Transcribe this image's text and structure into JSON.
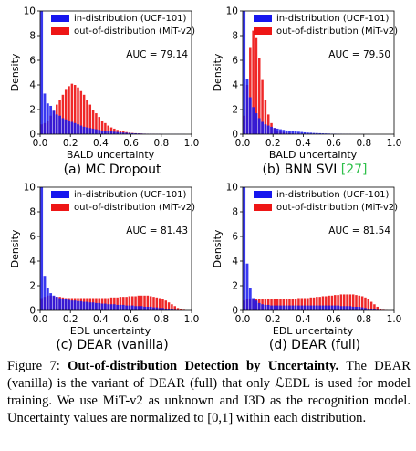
{
  "figure": {
    "caption": {
      "label": "Figure 7:",
      "title": "Out-of-distribution Detection by Uncertainty.",
      "text": "The DEAR (vanilla) is the variant of DEAR (full) that only ℒEDL is used for model training. We use MiT-v2 as unknown and I3D as the recognition model. Uncertainty values are normalized to [0,1] within each distribution."
    }
  },
  "colors": {
    "in_distribution": "#1616ee",
    "out_of_distribution": "#ee1616"
  },
  "chart_data": [
    {
      "type": "bar",
      "subcaption": {
        "prefix": "(a) MC Dropout",
        "citation": ""
      },
      "xlabel": "BALD uncertainty",
      "ylabel": "Density",
      "xlim": [
        0,
        1
      ],
      "ylim": [
        0,
        10
      ],
      "xticks": [
        "0.0",
        "0.2",
        "0.4",
        "0.6",
        "0.8",
        "1.0"
      ],
      "yticks": [
        "0",
        "2",
        "4",
        "6",
        "8",
        "10"
      ],
      "annotation": "AUC = 79.14",
      "legend": {
        "position": "top-right",
        "entries": [
          "in-distribution (UCF-101)",
          "out-of-distribution (MiT-v2)"
        ]
      },
      "series": [
        {
          "name": "in-distribution (UCF-101)",
          "bin_width": 0.02,
          "values": [
            10,
            3.3,
            2.5,
            2.3,
            1.9,
            1.6,
            1.5,
            1.3,
            1.2,
            1.1,
            1.0,
            0.9,
            0.8,
            0.7,
            0.6,
            0.55,
            0.5,
            0.45,
            0.4,
            0.35,
            0.3,
            0.28,
            0.25,
            0.22,
            0.2,
            0.18,
            0.15,
            0.13,
            0.12,
            0.1,
            0.08,
            0.07,
            0.06,
            0.05,
            0.04,
            0.03,
            0.03,
            0.02,
            0.02,
            0.02,
            0.01,
            0.01,
            0.01,
            0.01,
            0.01,
            0.01,
            0.01,
            0.01,
            0,
            0
          ]
        },
        {
          "name": "out-of-distribution (MiT-v2)",
          "bin_width": 0.02,
          "values": [
            0.8,
            0.9,
            1.1,
            1.5,
            1.9,
            2.4,
            2.8,
            3.2,
            3.6,
            3.9,
            4.1,
            4.0,
            3.8,
            3.5,
            3.2,
            2.8,
            2.4,
            2.0,
            1.7,
            1.4,
            1.1,
            0.9,
            0.7,
            0.55,
            0.45,
            0.35,
            0.28,
            0.22,
            0.17,
            0.13,
            0.1,
            0.08,
            0.06,
            0.05,
            0.04,
            0.03,
            0.02,
            0.02,
            0.01,
            0.01,
            0,
            0,
            0,
            0,
            0,
            0,
            0,
            0,
            0,
            0
          ]
        }
      ]
    },
    {
      "type": "bar",
      "subcaption": {
        "prefix": "(b) BNN SVI ",
        "citation": "[27]"
      },
      "xlabel": "BALD uncertainty",
      "ylabel": "Density",
      "xlim": [
        0,
        1
      ],
      "ylim": [
        0,
        10
      ],
      "xticks": [
        "0.0",
        "0.2",
        "0.4",
        "0.6",
        "0.8",
        "1.0"
      ],
      "yticks": [
        "0",
        "2",
        "4",
        "6",
        "8",
        "10"
      ],
      "annotation": "AUC = 79.50",
      "legend": {
        "position": "top-right",
        "entries": [
          "in-distribution (UCF-101)",
          "out-of-distribution (MiT-v2)"
        ]
      },
      "series": [
        {
          "name": "in-distribution (UCF-101)",
          "bin_width": 0.02,
          "values": [
            10,
            4.5,
            3.0,
            2.2,
            1.7,
            1.3,
            1.0,
            0.8,
            0.7,
            0.6,
            0.5,
            0.45,
            0.4,
            0.35,
            0.3,
            0.28,
            0.25,
            0.22,
            0.2,
            0.18,
            0.15,
            0.13,
            0.12,
            0.1,
            0.09,
            0.08,
            0.07,
            0.06,
            0.05,
            0.04,
            0.04,
            0.03,
            0.03,
            0.02,
            0.02,
            0.02,
            0.01,
            0.01,
            0.01,
            0.01,
            0.01,
            0.01,
            0,
            0,
            0,
            0,
            0,
            0,
            0,
            0
          ]
        },
        {
          "name": "out-of-distribution (MiT-v2)",
          "bin_width": 0.02,
          "values": [
            1.5,
            4.0,
            7.0,
            8.4,
            7.8,
            6.2,
            4.4,
            2.8,
            1.6,
            0.9,
            0.5,
            0.3,
            0.2,
            0.15,
            0.1,
            0.08,
            0.06,
            0.05,
            0.04,
            0.03,
            0.02,
            0.02,
            0.01,
            0.01,
            0.01,
            0,
            0,
            0,
            0,
            0,
            0,
            0,
            0,
            0,
            0,
            0,
            0,
            0,
            0,
            0,
            0,
            0,
            0,
            0,
            0,
            0,
            0,
            0,
            0,
            0
          ]
        }
      ]
    },
    {
      "type": "bar",
      "subcaption": {
        "prefix": "(c) DEAR (vanilla)",
        "citation": ""
      },
      "xlabel": "EDL uncertainty",
      "ylabel": "Density",
      "xlim": [
        0,
        1
      ],
      "ylim": [
        0,
        10
      ],
      "xticks": [
        "0.0",
        "0.2",
        "0.4",
        "0.6",
        "0.8",
        "1.0"
      ],
      "yticks": [
        "0",
        "2",
        "4",
        "6",
        "8",
        "10"
      ],
      "annotation": "AUC = 81.43",
      "legend": {
        "position": "top-right",
        "entries": [
          "in-distribution (UCF-101)",
          "out-of-distribution (MiT-v2)"
        ]
      },
      "series": [
        {
          "name": "in-distribution (UCF-101)",
          "bin_width": 0.02,
          "values": [
            10,
            2.8,
            1.8,
            1.4,
            1.2,
            1.1,
            1.0,
            0.95,
            0.9,
            0.85,
            0.8,
            0.8,
            0.75,
            0.75,
            0.7,
            0.7,
            0.65,
            0.65,
            0.6,
            0.6,
            0.55,
            0.55,
            0.5,
            0.5,
            0.5,
            0.45,
            0.45,
            0.45,
            0.4,
            0.4,
            0.4,
            0.35,
            0.35,
            0.35,
            0.3,
            0.3,
            0.3,
            0.25,
            0.25,
            0.2,
            0.2,
            0.15,
            0.12,
            0.1,
            0.05,
            0.02,
            0,
            0,
            0,
            0
          ]
        },
        {
          "name": "out-of-distribution (MiT-v2)",
          "bin_width": 0.02,
          "values": [
            1.0,
            1.1,
            1.2,
            1.2,
            1.15,
            1.1,
            1.1,
            1.05,
            1.0,
            1.0,
            1.0,
            1.0,
            1.0,
            1.0,
            1.0,
            1.0,
            1.0,
            1.0,
            1.0,
            1.0,
            1.0,
            1.0,
            1.0,
            1.05,
            1.05,
            1.05,
            1.1,
            1.1,
            1.1,
            1.15,
            1.15,
            1.15,
            1.2,
            1.2,
            1.2,
            1.2,
            1.15,
            1.1,
            1.05,
            1.0,
            0.9,
            0.8,
            0.65,
            0.5,
            0.35,
            0.2,
            0.1,
            0.05,
            0,
            0
          ]
        }
      ]
    },
    {
      "type": "bar",
      "subcaption": {
        "prefix": "(d) DEAR (full)",
        "citation": ""
      },
      "xlabel": "EDL uncertainty",
      "ylabel": "Density",
      "xlim": [
        0,
        1
      ],
      "ylim": [
        0,
        10
      ],
      "xticks": [
        "0.0",
        "0.2",
        "0.4",
        "0.6",
        "0.8",
        "1.0"
      ],
      "yticks": [
        "0",
        "2",
        "4",
        "6",
        "8",
        "10"
      ],
      "annotation": "AUC = 81.54",
      "legend": {
        "position": "top-right",
        "entries": [
          "in-distribution (UCF-101)",
          "out-of-distribution (MiT-v2)"
        ]
      },
      "series": [
        {
          "name": "in-distribution (UCF-101)",
          "bin_width": 0.02,
          "values": [
            10,
            3.8,
            1.8,
            1.0,
            0.8,
            0.6,
            0.5,
            0.45,
            0.45,
            0.4,
            0.4,
            0.4,
            0.4,
            0.4,
            0.4,
            0.4,
            0.4,
            0.4,
            0.4,
            0.4,
            0.4,
            0.4,
            0.4,
            0.4,
            0.4,
            0.4,
            0.4,
            0.4,
            0.4,
            0.4,
            0.4,
            0.4,
            0.35,
            0.35,
            0.35,
            0.35,
            0.3,
            0.3,
            0.3,
            0.25,
            0.2,
            0.15,
            0.1,
            0.08,
            0.05,
            0.03,
            0.01,
            0,
            0,
            0
          ]
        },
        {
          "name": "out-of-distribution (MiT-v2)",
          "bin_width": 0.02,
          "values": [
            0.8,
            0.9,
            0.95,
            0.95,
            0.95,
            0.95,
            0.95,
            0.95,
            0.95,
            0.95,
            0.95,
            0.95,
            0.95,
            0.95,
            0.95,
            0.95,
            0.95,
            0.95,
            1.0,
            1.0,
            1.0,
            1.0,
            1.05,
            1.05,
            1.1,
            1.1,
            1.15,
            1.15,
            1.2,
            1.2,
            1.25,
            1.25,
            1.3,
            1.3,
            1.3,
            1.3,
            1.3,
            1.25,
            1.2,
            1.15,
            1.05,
            0.9,
            0.7,
            0.5,
            0.3,
            0.15,
            0.05,
            0.02,
            0,
            0
          ]
        }
      ]
    }
  ]
}
